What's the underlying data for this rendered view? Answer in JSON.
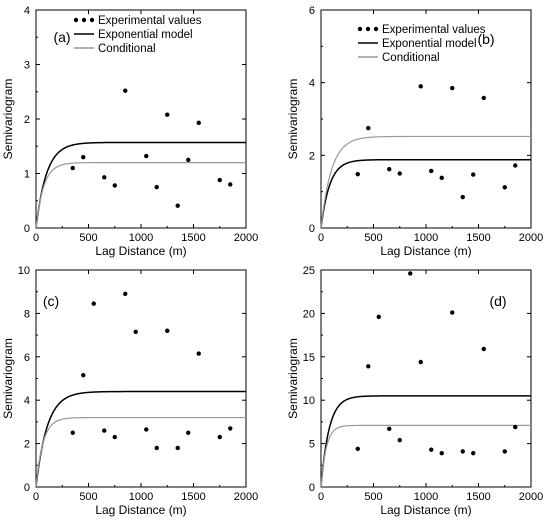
{
  "chart_data": [
    {
      "type": "scatter",
      "panel_label": "(a)",
      "xlabel": "Lag Distance (m)",
      "ylabel": "Semivariogram",
      "xlim": [
        0,
        2000
      ],
      "ylim": [
        0,
        4
      ],
      "x_ticks": [
        "0",
        "500",
        "1000",
        "1500",
        "2000"
      ],
      "y_ticks": [
        "0",
        "1",
        "2",
        "3",
        "4"
      ],
      "legend_position": "top-left",
      "series": [
        {
          "name": "Experimental values",
          "kind": "points",
          "x": [
            350,
            450,
            650,
            750,
            850,
            1050,
            1150,
            1250,
            1350,
            1450,
            1550,
            1750,
            1850
          ],
          "y": [
            1.1,
            1.3,
            0.93,
            0.78,
            2.52,
            1.32,
            0.75,
            2.08,
            0.41,
            1.25,
            1.93,
            0.88,
            0.8
          ]
        },
        {
          "name": "Exponential model",
          "kind": "model",
          "sill": 1.57,
          "range": 300,
          "nugget": 0
        },
        {
          "name": "Conditional",
          "kind": "model",
          "sill": 1.2,
          "range": 220,
          "nugget": 0
        }
      ]
    },
    {
      "type": "scatter",
      "panel_label": "(b)",
      "xlabel": "Lag Distance (m)",
      "ylabel": "Semivariogram",
      "xlim": [
        0,
        2000
      ],
      "ylim": [
        0,
        6
      ],
      "x_ticks": [
        "0",
        "500",
        "1000",
        "1500",
        "2000"
      ],
      "y_ticks": [
        "0",
        "2",
        "4",
        "6"
      ],
      "legend_position": "top-left",
      "series": [
        {
          "name": "Experimental values",
          "kind": "points",
          "x": [
            350,
            450,
            650,
            750,
            950,
            1050,
            1150,
            1250,
            1350,
            1450,
            1550,
            1750,
            1850
          ],
          "y": [
            1.48,
            2.75,
            1.62,
            1.5,
            3.9,
            1.57,
            1.38,
            3.85,
            0.85,
            1.47,
            3.58,
            1.12,
            1.72
          ]
        },
        {
          "name": "Exponential model",
          "kind": "model",
          "sill": 1.88,
          "range": 250,
          "nugget": 0
        },
        {
          "name": "Conditional",
          "kind": "model",
          "sill": 2.52,
          "range": 300,
          "nugget": 0
        }
      ]
    },
    {
      "type": "scatter",
      "panel_label": "(c)",
      "xlabel": "Lag Distance (m)",
      "ylabel": "Semivariogram",
      "xlim": [
        0,
        2000
      ],
      "ylim": [
        0,
        10
      ],
      "x_ticks": [
        "0",
        "500",
        "1000",
        "1500",
        "2000"
      ],
      "y_ticks": [
        "0",
        "2",
        "4",
        "6",
        "8",
        "10"
      ],
      "series": [
        {
          "name": "Experimental values",
          "kind": "points",
          "x": [
            350,
            450,
            550,
            650,
            750,
            850,
            950,
            1050,
            1150,
            1250,
            1350,
            1450,
            1550,
            1750,
            1850
          ],
          "y": [
            2.5,
            5.15,
            8.45,
            2.6,
            2.3,
            8.9,
            7.15,
            2.65,
            1.8,
            7.2,
            1.8,
            2.5,
            6.15,
            2.3,
            2.7
          ]
        },
        {
          "name": "Exponential model",
          "kind": "model",
          "sill": 4.4,
          "range": 320,
          "nugget": 0
        },
        {
          "name": "Conditional",
          "kind": "model",
          "sill": 3.2,
          "range": 200,
          "nugget": 0
        }
      ]
    },
    {
      "type": "scatter",
      "panel_label": "(d)",
      "xlabel": "Lag Distance (m)",
      "ylabel": "Semivariogram",
      "xlim": [
        0,
        2000
      ],
      "ylim": [
        0,
        25
      ],
      "x_ticks": [
        "0",
        "500",
        "1000",
        "1500",
        "2000"
      ],
      "y_ticks": [
        "0",
        "5",
        "10",
        "15",
        "20",
        "25"
      ],
      "series": [
        {
          "name": "Experimental values",
          "kind": "points",
          "x": [
            350,
            450,
            550,
            650,
            750,
            850,
            950,
            1050,
            1150,
            1250,
            1350,
            1450,
            1550,
            1750,
            1850
          ],
          "y": [
            4.4,
            13.9,
            19.6,
            6.7,
            5.4,
            24.6,
            14.4,
            4.3,
            3.9,
            20.1,
            4.1,
            3.9,
            15.9,
            4.1,
            6.9
          ]
        },
        {
          "name": "Exponential model",
          "kind": "model",
          "sill": 10.5,
          "range": 230,
          "nugget": 0
        },
        {
          "name": "Conditional",
          "kind": "model",
          "sill": 7.1,
          "range": 150,
          "nugget": 0
        }
      ]
    }
  ],
  "colors": {
    "points": "#000000",
    "exponential": "#000000",
    "conditional": "#999999",
    "axis": "#000000"
  }
}
